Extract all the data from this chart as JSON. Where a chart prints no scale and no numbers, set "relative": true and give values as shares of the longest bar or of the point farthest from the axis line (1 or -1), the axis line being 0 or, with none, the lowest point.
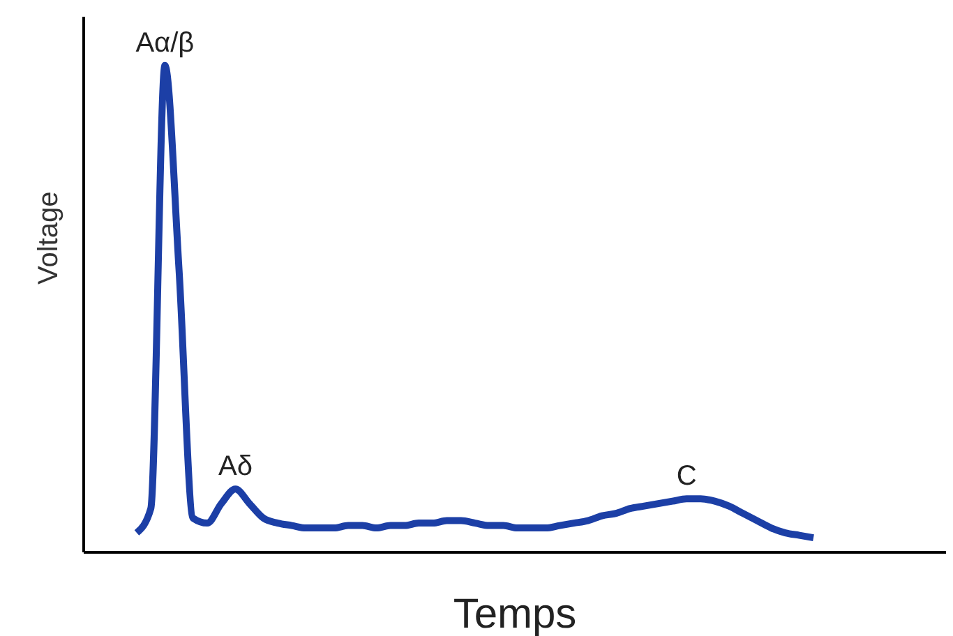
{
  "chart_data": {
    "type": "line",
    "xlabel": "Temps",
    "ylabel": "Voltage",
    "relative": true,
    "legend": false,
    "grid": false,
    "marker": "none",
    "categories": [
      null,
      null,
      null,
      null,
      null,
      null,
      null,
      null,
      null,
      null,
      null,
      null,
      null,
      null,
      null,
      null,
      null,
      null,
      null,
      null,
      null,
      null,
      null,
      null,
      null,
      null,
      null,
      null,
      null,
      null,
      null,
      null,
      null,
      null,
      null,
      null,
      null,
      null,
      null,
      null,
      null,
      null,
      null,
      null,
      null,
      null,
      null,
      null,
      null
    ],
    "series": [
      {
        "color": "#1c3fa6",
        "values": [
          0.04,
          0.09,
          1,
          0.58,
          0.07,
          0.06,
          0.1,
          0.13,
          0.1,
          0.07,
          0.06,
          0.055,
          0.05,
          0.05,
          0.05,
          0.055,
          0.055,
          0.05,
          0.055,
          0.055,
          0.06,
          0.06,
          0.065,
          0.065,
          0.06,
          0.055,
          0.055,
          0.05,
          0.05,
          0.05,
          0.055,
          0.06,
          0.065,
          0.075,
          0.08,
          0.09,
          0.095,
          0.1,
          0.105,
          0.11,
          0.11,
          0.105,
          0.095,
          0.08,
          0.065,
          0.05,
          0.04,
          0.035,
          0.03
        ]
      }
    ],
    "annotations": [
      {
        "text": "Aα/β",
        "y": 1
      },
      {
        "text": "Aδ",
        "y": 0.13
      },
      {
        "text": "C",
        "y": 0.11
      }
    ]
  }
}
